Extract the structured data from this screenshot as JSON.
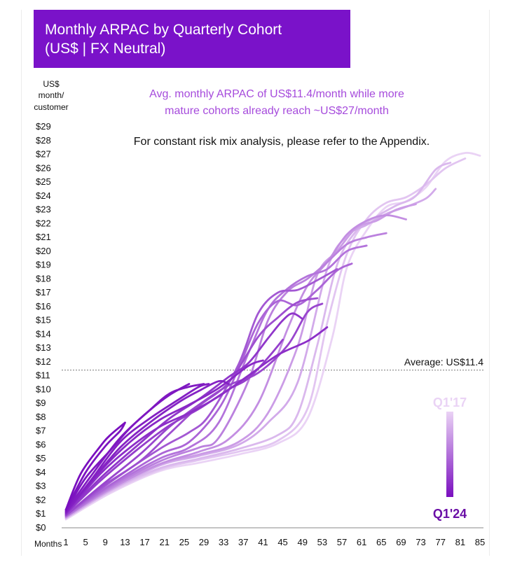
{
  "chart_data": {
    "type": "line",
    "title": [
      "Monthly ARPAC by Quarterly Cohort",
      "(US$ | FX Neutral)"
    ],
    "ylabel": [
      "US$",
      "month/",
      "customer"
    ],
    "xlabel": "Months",
    "ylim": [
      0,
      29
    ],
    "xlim": [
      1,
      85
    ],
    "y_ticks": [
      "$0",
      "$1",
      "$2",
      "$3",
      "$4",
      "$5",
      "$6",
      "$7",
      "$8",
      "$9",
      "$10",
      "$11",
      "$12",
      "$13",
      "$14",
      "$15",
      "$16",
      "$17",
      "$18",
      "$19",
      "$20",
      "$21",
      "$22",
      "$23",
      "$24",
      "$25",
      "$26",
      "$27",
      "$28",
      "$29"
    ],
    "x_ticks": [
      1,
      5,
      9,
      13,
      17,
      21,
      25,
      29,
      33,
      37,
      41,
      45,
      49,
      53,
      57,
      61,
      65,
      69,
      73,
      77,
      81,
      85
    ],
    "annotations": {
      "headline": [
        "Avg. monthly ARPAC of US$11.4/month while more",
        "mature cohorts already reach ~US$27/month"
      ],
      "note": "For constant risk mix analysis, please refer to the Appendix.",
      "average_label": "Average: US$11.4",
      "average_value": 11.4
    },
    "legend": {
      "oldest": "Q1'17",
      "newest": "Q1'24",
      "placement": "right"
    },
    "colors": {
      "title_bg": "#7a12c9",
      "headline": "#a64bdc",
      "newest": "#7a0fbf",
      "oldest": "#ead3f5",
      "q1_24_label": "#6a0fa6"
    },
    "series": [
      {
        "shade": 0.0,
        "points": [
          [
            1,
            0.6
          ],
          [
            10,
            2.5
          ],
          [
            20,
            4.1
          ],
          [
            28,
            4.7
          ],
          [
            36,
            5.3
          ],
          [
            44,
            6.1
          ],
          [
            50,
            7.9
          ],
          [
            55,
            13.7
          ],
          [
            58,
            18.8
          ],
          [
            62,
            21.5
          ],
          [
            66,
            23.2
          ],
          [
            70,
            23.6
          ],
          [
            74,
            24.6
          ],
          [
            78,
            26.5
          ],
          [
            82,
            27.1
          ],
          [
            85,
            26.9
          ]
        ]
      },
      {
        "shade": 0.07,
        "points": [
          [
            1,
            0.7
          ],
          [
            10,
            2.6
          ],
          [
            20,
            4.2
          ],
          [
            28,
            4.9
          ],
          [
            36,
            5.5
          ],
          [
            44,
            6.3
          ],
          [
            50,
            8.6
          ],
          [
            54,
            14.8
          ],
          [
            58,
            19.8
          ],
          [
            62,
            22.3
          ],
          [
            66,
            23.5
          ],
          [
            70,
            23.9
          ],
          [
            74,
            24.8
          ],
          [
            78,
            26.0
          ],
          [
            82,
            26.7
          ]
        ]
      },
      {
        "shade": 0.14,
        "points": [
          [
            1,
            0.7
          ],
          [
            10,
            2.7
          ],
          [
            20,
            4.3
          ],
          [
            28,
            5.0
          ],
          [
            36,
            5.7
          ],
          [
            44,
            6.7
          ],
          [
            48,
            8.2
          ],
          [
            52,
            13.2
          ],
          [
            56,
            19.0
          ],
          [
            60,
            21.5
          ],
          [
            64,
            22.5
          ],
          [
            68,
            23.3
          ],
          [
            72,
            24.0
          ],
          [
            76,
            25.9
          ],
          [
            79,
            26.4
          ]
        ]
      },
      {
        "shade": 0.21,
        "points": [
          [
            1,
            0.7
          ],
          [
            10,
            2.7
          ],
          [
            20,
            4.5
          ],
          [
            28,
            5.2
          ],
          [
            36,
            6.0
          ],
          [
            42,
            7.6
          ],
          [
            48,
            10.5
          ],
          [
            54,
            18.7
          ],
          [
            58,
            21.1
          ],
          [
            62,
            21.9
          ],
          [
            66,
            22.7
          ],
          [
            70,
            23.2
          ],
          [
            74,
            23.8
          ],
          [
            76,
            24.5
          ]
        ]
      },
      {
        "shade": 0.28,
        "points": [
          [
            1,
            0.8
          ],
          [
            10,
            2.8
          ],
          [
            20,
            4.6
          ],
          [
            28,
            5.3
          ],
          [
            36,
            6.2
          ],
          [
            42,
            8.3
          ],
          [
            48,
            13.1
          ],
          [
            52,
            18.3
          ],
          [
            56,
            20.0
          ],
          [
            60,
            21.7
          ],
          [
            64,
            22.2
          ],
          [
            68,
            23.0
          ],
          [
            72,
            23.4
          ]
        ]
      },
      {
        "shade": 0.35,
        "points": [
          [
            1,
            0.8
          ],
          [
            10,
            2.8
          ],
          [
            20,
            4.6
          ],
          [
            28,
            5.5
          ],
          [
            34,
            6.4
          ],
          [
            40,
            9.0
          ],
          [
            46,
            14.4
          ],
          [
            50,
            17.5
          ],
          [
            54,
            19.2
          ],
          [
            58,
            21.2
          ],
          [
            62,
            22.2
          ],
          [
            66,
            22.6
          ],
          [
            70,
            22.3
          ]
        ]
      },
      {
        "shade": 0.42,
        "points": [
          [
            1,
            0.8
          ],
          [
            10,
            2.9
          ],
          [
            20,
            4.8
          ],
          [
            28,
            5.8
          ],
          [
            32,
            6.5
          ],
          [
            38,
            10.6
          ],
          [
            42,
            15.0
          ],
          [
            46,
            17.1
          ],
          [
            50,
            18.0
          ],
          [
            54,
            19.2
          ],
          [
            58,
            20.5
          ],
          [
            62,
            21.0
          ],
          [
            66,
            21.3
          ]
        ]
      },
      {
        "shade": 0.49,
        "points": [
          [
            1,
            0.8
          ],
          [
            10,
            3.0
          ],
          [
            20,
            5.0
          ],
          [
            26,
            5.8
          ],
          [
            32,
            7.6
          ],
          [
            38,
            12.6
          ],
          [
            42,
            15.8
          ],
          [
            46,
            17.3
          ],
          [
            50,
            18.2
          ],
          [
            54,
            18.7
          ],
          [
            58,
            20.0
          ],
          [
            62,
            20.4
          ]
        ]
      },
      {
        "shade": 0.56,
        "points": [
          [
            1,
            0.9
          ],
          [
            10,
            3.1
          ],
          [
            20,
            5.3
          ],
          [
            26,
            6.2
          ],
          [
            32,
            8.6
          ],
          [
            36,
            11.5
          ],
          [
            40,
            14.8
          ],
          [
            44,
            16.4
          ],
          [
            48,
            16.1
          ],
          [
            52,
            17.2
          ],
          [
            56,
            18.6
          ],
          [
            59,
            19.1
          ]
        ]
      },
      {
        "shade": 0.63,
        "points": [
          [
            1,
            0.9
          ],
          [
            10,
            3.3
          ],
          [
            20,
            5.7
          ],
          [
            26,
            6.9
          ],
          [
            30,
            8.1
          ],
          [
            36,
            11.8
          ],
          [
            40,
            15.5
          ],
          [
            44,
            17.0
          ],
          [
            48,
            17.2
          ],
          [
            52,
            17.9
          ],
          [
            56,
            18.7
          ]
        ]
      },
      {
        "shade": 0.68,
        "points": [
          [
            1,
            0.9
          ],
          [
            8,
            2.9
          ],
          [
            16,
            4.8
          ],
          [
            22,
            6.8
          ],
          [
            28,
            8.8
          ],
          [
            34,
            10.5
          ],
          [
            40,
            13.8
          ],
          [
            44,
            15.2
          ],
          [
            48,
            16.3
          ],
          [
            52,
            16.6
          ]
        ]
      },
      {
        "shade": 0.72,
        "points": [
          [
            1,
            0.9
          ],
          [
            8,
            3.0
          ],
          [
            16,
            5.3
          ],
          [
            22,
            7.3
          ],
          [
            28,
            8.9
          ],
          [
            34,
            10.3
          ],
          [
            40,
            11.2
          ],
          [
            46,
            13.2
          ],
          [
            50,
            15.6
          ],
          [
            53,
            16.2
          ]
        ]
      },
      {
        "shade": 0.76,
        "points": [
          [
            1,
            1.0
          ],
          [
            8,
            3.4
          ],
          [
            16,
            5.8
          ],
          [
            22,
            7.4
          ],
          [
            28,
            8.6
          ],
          [
            34,
            10.0
          ],
          [
            38,
            10.8
          ],
          [
            42,
            12.3
          ],
          [
            45,
            13.6
          ]
        ]
      },
      {
        "shade": 0.8,
        "points": [
          [
            1,
            1.0
          ],
          [
            8,
            3.6
          ],
          [
            16,
            6.1
          ],
          [
            22,
            7.9
          ],
          [
            28,
            9.3
          ],
          [
            34,
            10.9
          ],
          [
            38,
            11.9
          ],
          [
            42,
            13.7
          ],
          [
            45,
            15.0
          ],
          [
            47,
            15.5
          ],
          [
            49,
            15.1
          ]
        ]
      },
      {
        "shade": 0.84,
        "points": [
          [
            1,
            1.0
          ],
          [
            8,
            3.9
          ],
          [
            14,
            5.8
          ],
          [
            20,
            7.3
          ],
          [
            26,
            8.3
          ],
          [
            32,
            9.5
          ],
          [
            38,
            11.0
          ],
          [
            44,
            12.5
          ],
          [
            50,
            13.5
          ],
          [
            54,
            14.5
          ]
        ]
      },
      {
        "shade": 0.87,
        "points": [
          [
            1,
            1.1
          ],
          [
            8,
            4.1
          ],
          [
            14,
            6.2
          ],
          [
            20,
            7.8
          ],
          [
            26,
            8.9
          ],
          [
            32,
            10.1
          ],
          [
            38,
            11.7
          ],
          [
            41,
            12.1
          ]
        ]
      },
      {
        "shade": 0.9,
        "points": [
          [
            1,
            1.1
          ],
          [
            6,
            3.3
          ],
          [
            12,
            5.8
          ],
          [
            18,
            7.6
          ],
          [
            24,
            9.1
          ],
          [
            28,
            9.9
          ],
          [
            32,
            10.6
          ],
          [
            34,
            10.4
          ]
        ]
      },
      {
        "shade": 0.92,
        "points": [
          [
            1,
            1.1
          ],
          [
            6,
            3.4
          ],
          [
            12,
            6.2
          ],
          [
            18,
            7.9
          ],
          [
            24,
            9.3
          ],
          [
            28,
            10.2
          ],
          [
            30,
            10.4
          ]
        ]
      },
      {
        "shade": 0.94,
        "points": [
          [
            1,
            1.2
          ],
          [
            6,
            3.7
          ],
          [
            12,
            6.5
          ],
          [
            18,
            8.5
          ],
          [
            22,
            9.7
          ],
          [
            26,
            10.2
          ],
          [
            29,
            10.4
          ]
        ]
      },
      {
        "shade": 0.96,
        "points": [
          [
            1,
            1.2
          ],
          [
            5,
            3.6
          ],
          [
            10,
            5.6
          ],
          [
            14,
            7.2
          ],
          [
            18,
            8.5
          ],
          [
            22,
            9.6
          ],
          [
            26,
            10.4
          ]
        ]
      },
      {
        "shade": 0.98,
        "points": [
          [
            1,
            1.3
          ],
          [
            5,
            4.0
          ],
          [
            9,
            5.9
          ],
          [
            12,
            7.0
          ],
          [
            13,
            7.6
          ]
        ]
      },
      {
        "shade": 1.0,
        "points": [
          [
            1,
            1.3
          ],
          [
            4,
            3.9
          ],
          [
            8,
            5.9
          ],
          [
            10,
            6.7
          ],
          [
            13,
            7.6
          ]
        ]
      }
    ]
  }
}
